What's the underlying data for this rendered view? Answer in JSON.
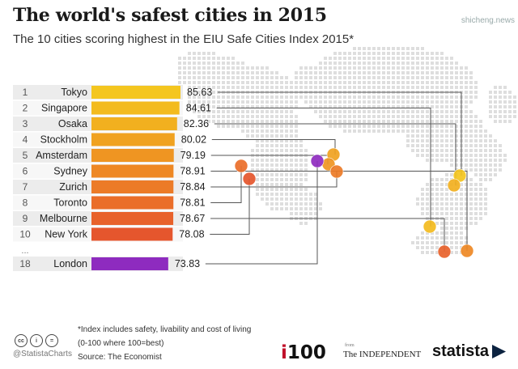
{
  "header": {
    "title": "The world's safest cities in 2015",
    "subtitle": "The 10 cities scoring highest in the EIU Safe Cities Index 2015*",
    "watermark": "shicheng.news"
  },
  "chart_data": {
    "type": "bar",
    "orientation": "horizontal",
    "title": "The world's safest cities in 2015",
    "subtitle": "The 10 cities scoring highest in the EIU Safe Cities Index 2015*",
    "xlim": [
      0,
      100
    ],
    "grid": false,
    "legend": "none",
    "rows": [
      {
        "rank": "1",
        "city": "Tokyo",
        "value": 85.63,
        "label": "85.63",
        "color": "#f4c61f"
      },
      {
        "rank": "2",
        "city": "Singapore",
        "value": 84.61,
        "label": "84.61",
        "color": "#f3bb1e"
      },
      {
        "rank": "3",
        "city": "Osaka",
        "value": 82.36,
        "label": "82.36",
        "color": "#f2b01f"
      },
      {
        "rank": "4",
        "city": "Stockholm",
        "value": 80.02,
        "label": "80.02",
        "color": "#f0a220"
      },
      {
        "rank": "5",
        "city": "Amsterdam",
        "value": 79.19,
        "label": "79.19",
        "color": "#ef9522"
      },
      {
        "rank": "6",
        "city": "Sydney",
        "value": 78.91,
        "label": "78.91",
        "color": "#ee8824"
      },
      {
        "rank": "7",
        "city": "Zurich",
        "value": 78.84,
        "label": "78.84",
        "color": "#ec7b27"
      },
      {
        "rank": "8",
        "city": "Toronto",
        "value": 78.81,
        "label": "78.81",
        "color": "#ea6e29"
      },
      {
        "rank": "9",
        "city": "Melbourne",
        "value": 78.67,
        "label": "78.67",
        "color": "#e8622b"
      },
      {
        "rank": "10",
        "city": "New York",
        "value": 78.08,
        "label": "78.08",
        "color": "#e5562d"
      },
      {
        "rank": "18",
        "city": "London",
        "value": 73.83,
        "label": "73.83",
        "color": "#8e2bbf"
      }
    ],
    "ellipsis": "...",
    "map_points": [
      {
        "city": "Tokyo",
        "color": "#f4c61f"
      },
      {
        "city": "Singapore",
        "color": "#f3bb1e"
      },
      {
        "city": "Osaka",
        "color": "#f2b01f"
      },
      {
        "city": "Stockholm",
        "color": "#f0a220"
      },
      {
        "city": "Amsterdam",
        "color": "#ef9522"
      },
      {
        "city": "Sydney",
        "color": "#ee8824"
      },
      {
        "city": "Zurich",
        "color": "#ec7b27"
      },
      {
        "city": "Toronto",
        "color": "#ea6e29"
      },
      {
        "city": "Melbourne",
        "color": "#e8622b"
      },
      {
        "city": "New York",
        "color": "#e5562d"
      },
      {
        "city": "London",
        "color": "#8e2bbf"
      }
    ]
  },
  "footer": {
    "note_line1": "*Index includes safety, livability and cost of living",
    "note_line2": "(0-100 where 100=best)",
    "source": "Source: The Economist",
    "handle": "@StatistaCharts",
    "cc": [
      "cc",
      "i",
      "="
    ],
    "logo_i100": "i100",
    "logo_independent_from": "from",
    "logo_independent": "The INDEPENDENT",
    "logo_statista": "statista"
  }
}
